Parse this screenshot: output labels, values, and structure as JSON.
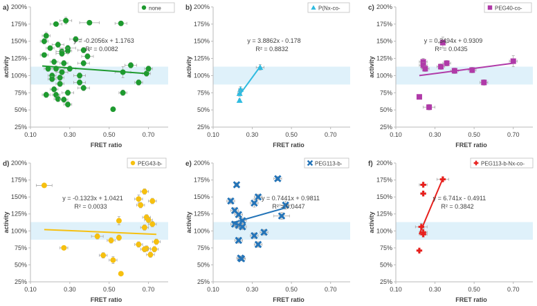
{
  "colors": {
    "band": "#dff1fa",
    "axis": "#b8b8b8",
    "text": "#404040",
    "error_bar": "#a6a6a6"
  },
  "chart_data": [
    {
      "type": "scatter",
      "panel_label": "a)",
      "legend": "none",
      "marker": "circle",
      "color": "#1e9a2f",
      "xlabel": "FRET ratio",
      "ylabel": "activity",
      "xlim": [
        0.1,
        0.8
      ],
      "ylim": [
        25,
        200
      ],
      "x_ticks": [
        0.1,
        0.3,
        0.5,
        0.7
      ],
      "x_tick_labels": [
        "0.10",
        "0.30",
        "0.50",
        "0.70"
      ],
      "y_ticks": [
        25,
        50,
        75,
        100,
        125,
        150,
        175,
        200
      ],
      "y_tick_labels": [
        "25%",
        "50%",
        "75%",
        "100%",
        "125%",
        "150%",
        "175%",
        "200%"
      ],
      "band": [
        87,
        113
      ],
      "equation": "y = -0.2056x + 1.1763",
      "r2": "R² = 0.0082",
      "trend": {
        "x": [
          0.16,
          0.69
        ],
        "y": [
          114,
          103
        ]
      },
      "points": [
        {
          "x": 0.28,
          "y": 180,
          "xerr": 0.03,
          "yerr": 5
        },
        {
          "x": 0.4,
          "y": 177,
          "xerr": 0.05,
          "yerr": 3
        },
        {
          "x": 0.23,
          "y": 175,
          "xerr": 0.03,
          "yerr": 3
        },
        {
          "x": 0.56,
          "y": 176,
          "xerr": 0.03,
          "yerr": 3
        },
        {
          "x": 0.18,
          "y": 158,
          "xerr": 0.02,
          "yerr": 5
        },
        {
          "x": 0.17,
          "y": 150,
          "xerr": 0.02,
          "yerr": 4
        },
        {
          "x": 0.24,
          "y": 145,
          "xerr": 0.03,
          "yerr": 4
        },
        {
          "x": 0.33,
          "y": 153,
          "xerr": 0.03,
          "yerr": 4
        },
        {
          "x": 0.29,
          "y": 140,
          "xerr": 0.04,
          "yerr": 4
        },
        {
          "x": 0.37,
          "y": 137,
          "xerr": 0.03,
          "yerr": 4
        },
        {
          "x": 0.2,
          "y": 140,
          "xerr": 0.02,
          "yerr": 3
        },
        {
          "x": 0.26,
          "y": 135,
          "xerr": 0.03,
          "yerr": 4
        },
        {
          "x": 0.29,
          "y": 136,
          "xerr": 0.02,
          "yerr": 4
        },
        {
          "x": 0.17,
          "y": 130,
          "xerr": 0.02,
          "yerr": 3
        },
        {
          "x": 0.26,
          "y": 132,
          "xerr": 0.03,
          "yerr": 4
        },
        {
          "x": 0.39,
          "y": 128,
          "xerr": 0.03,
          "yerr": 4
        },
        {
          "x": 0.22,
          "y": 120,
          "xerr": 0.02,
          "yerr": 4
        },
        {
          "x": 0.27,
          "y": 118,
          "xerr": 0.02,
          "yerr": 4
        },
        {
          "x": 0.37,
          "y": 118,
          "xerr": 0.03,
          "yerr": 4
        },
        {
          "x": 0.19,
          "y": 110,
          "xerr": 0.02,
          "yerr": 4
        },
        {
          "x": 0.23,
          "y": 110,
          "xerr": 0.02,
          "yerr": 4
        },
        {
          "x": 0.26,
          "y": 105,
          "xerr": 0.03,
          "yerr": 4
        },
        {
          "x": 0.3,
          "y": 110,
          "xerr": 0.03,
          "yerr": 4
        },
        {
          "x": 0.21,
          "y": 100,
          "xerr": 0.02,
          "yerr": 4
        },
        {
          "x": 0.25,
          "y": 97,
          "xerr": 0.02,
          "yerr": 4
        },
        {
          "x": 0.21,
          "y": 95,
          "xerr": 0.02,
          "yerr": 4
        },
        {
          "x": 0.35,
          "y": 100,
          "xerr": 0.03,
          "yerr": 4
        },
        {
          "x": 0.35,
          "y": 90,
          "xerr": 0.03,
          "yerr": 4
        },
        {
          "x": 0.25,
          "y": 88,
          "xerr": 0.02,
          "yerr": 4
        },
        {
          "x": 0.22,
          "y": 80,
          "xerr": 0.02,
          "yerr": 4
        },
        {
          "x": 0.37,
          "y": 82,
          "xerr": 0.03,
          "yerr": 4
        },
        {
          "x": 0.29,
          "y": 75,
          "xerr": 0.03,
          "yerr": 4
        },
        {
          "x": 0.23,
          "y": 72,
          "xerr": 0.02,
          "yerr": 4
        },
        {
          "x": 0.18,
          "y": 72,
          "xerr": 0.02,
          "yerr": 4
        },
        {
          "x": 0.24,
          "y": 66,
          "xerr": 0.02,
          "yerr": 4
        },
        {
          "x": 0.27,
          "y": 65,
          "xerr": 0.02,
          "yerr": 4
        },
        {
          "x": 0.29,
          "y": 58,
          "xerr": 0.02,
          "yerr": 4
        },
        {
          "x": 0.52,
          "y": 51,
          "xerr": 0.0,
          "yerr": 0
        },
        {
          "x": 0.57,
          "y": 105,
          "xerr": 0.04,
          "yerr": 8
        },
        {
          "x": 0.61,
          "y": 115,
          "xerr": 0.03,
          "yerr": 4
        },
        {
          "x": 0.57,
          "y": 75,
          "xerr": 0.02,
          "yerr": 4
        },
        {
          "x": 0.65,
          "y": 90,
          "xerr": 0.02,
          "yerr": 4
        },
        {
          "x": 0.69,
          "y": 103,
          "xerr": 0.02,
          "yerr": 4
        },
        {
          "x": 0.7,
          "y": 110,
          "xerr": 0.02,
          "yerr": 4
        }
      ]
    },
    {
      "type": "scatter",
      "panel_label": "b)",
      "legend": "P(Nx-co-",
      "marker": "triangle",
      "color": "#2fbbe0",
      "xlabel": "FRET ratio",
      "ylabel": "activity",
      "xlim": [
        0.1,
        0.8
      ],
      "ylim": [
        25,
        200
      ],
      "x_ticks": [
        0.1,
        0.3,
        0.5,
        0.7
      ],
      "x_tick_labels": [
        "0.10",
        "0.30",
        "0.50",
        "0.70"
      ],
      "y_ticks": [
        25,
        50,
        75,
        100,
        125,
        150,
        175,
        200
      ],
      "y_tick_labels": [
        "25%",
        "50%",
        "75%",
        "100%",
        "125%",
        "150%",
        "175%",
        "200%"
      ],
      "band": [
        87,
        113
      ],
      "equation": "y = 3.8862x - 0.178",
      "r2": "R² = 0.8832",
      "trend": {
        "x": [
          0.235,
          0.34
        ],
        "y": [
          72,
          113
        ]
      },
      "points": [
        {
          "x": 0.34,
          "y": 112,
          "xerr": 0.02,
          "yerr": 4
        },
        {
          "x": 0.24,
          "y": 80,
          "xerr": 0.01,
          "yerr": 4
        },
        {
          "x": 0.235,
          "y": 74,
          "xerr": 0.01,
          "yerr": 4
        },
        {
          "x": 0.235,
          "y": 64,
          "xerr": 0.0,
          "yerr": 2
        }
      ]
    },
    {
      "type": "scatter",
      "panel_label": "c)",
      "legend": "PEG40-co-",
      "marker": "square",
      "color": "#b03aa8",
      "xlabel": "FRET ratio",
      "ylabel": "activity",
      "xlim": [
        0.1,
        0.8
      ],
      "ylim": [
        25,
        200
      ],
      "x_ticks": [
        0.1,
        0.3,
        0.5,
        0.7
      ],
      "x_tick_labels": [
        "0.10",
        "0.30",
        "0.50",
        "0.70"
      ],
      "y_ticks": [
        25,
        50,
        75,
        100,
        125,
        150,
        175,
        200
      ],
      "y_tick_labels": [
        "25%",
        "50%",
        "75%",
        "100%",
        "125%",
        "150%",
        "175%",
        "200%"
      ],
      "band": [
        87,
        113
      ],
      "equation": "y = 0.3494x + 0.9309",
      "r2": "R² = 0.0435",
      "trend": {
        "x": [
          0.22,
          0.7
        ],
        "y": [
          100,
          118
        ]
      },
      "points": [
        {
          "x": 0.34,
          "y": 148,
          "xerr": 0.02,
          "yerr": 8
        },
        {
          "x": 0.24,
          "y": 120,
          "xerr": 0.02,
          "yerr": 5
        },
        {
          "x": 0.24,
          "y": 115,
          "xerr": 0.02,
          "yerr": 4
        },
        {
          "x": 0.25,
          "y": 110,
          "xerr": 0.02,
          "yerr": 4
        },
        {
          "x": 0.33,
          "y": 113,
          "xerr": 0.02,
          "yerr": 4
        },
        {
          "x": 0.36,
          "y": 118,
          "xerr": 0.02,
          "yerr": 4
        },
        {
          "x": 0.4,
          "y": 107,
          "xerr": 0.02,
          "yerr": 4
        },
        {
          "x": 0.49,
          "y": 108,
          "xerr": 0.02,
          "yerr": 4
        },
        {
          "x": 0.7,
          "y": 121,
          "xerr": 0.02,
          "yerr": 8
        },
        {
          "x": 0.55,
          "y": 90,
          "xerr": 0.02,
          "yerr": 4
        },
        {
          "x": 0.22,
          "y": 69,
          "xerr": 0.0,
          "yerr": 2
        },
        {
          "x": 0.27,
          "y": 54,
          "xerr": 0.03,
          "yerr": 4
        }
      ]
    },
    {
      "type": "scatter",
      "panel_label": "d)",
      "legend": "PEG43-b-",
      "marker": "circle",
      "color": "#f6c010",
      "xlabel": "FRET ratio",
      "ylabel": "activity",
      "xlim": [
        0.1,
        0.8
      ],
      "ylim": [
        25,
        200
      ],
      "x_ticks": [
        0.1,
        0.3,
        0.5,
        0.7
      ],
      "x_tick_labels": [
        "0.10",
        "0.30",
        "0.50",
        "0.70"
      ],
      "y_ticks": [
        25,
        50,
        75,
        100,
        125,
        150,
        175,
        200
      ],
      "y_tick_labels": [
        "25%",
        "50%",
        "75%",
        "100%",
        "125%",
        "150%",
        "175%",
        "200%"
      ],
      "band": [
        87,
        113
      ],
      "equation": "y = -0.1323x + 1.0421",
      "r2": "R² = 0.0033",
      "trend": {
        "x": [
          0.17,
          0.74
        ],
        "y": [
          102,
          95
        ]
      },
      "points": [
        {
          "x": 0.17,
          "y": 167,
          "xerr": 0.04,
          "yerr": 2
        },
        {
          "x": 0.27,
          "y": 75,
          "xerr": 0.02,
          "yerr": 3
        },
        {
          "x": 0.44,
          "y": 92,
          "xerr": 0.03,
          "yerr": 4
        },
        {
          "x": 0.47,
          "y": 64,
          "xerr": 0.02,
          "yerr": 4
        },
        {
          "x": 0.51,
          "y": 86,
          "xerr": 0.02,
          "yerr": 4
        },
        {
          "x": 0.52,
          "y": 57,
          "xerr": 0.02,
          "yerr": 5
        },
        {
          "x": 0.55,
          "y": 115,
          "xerr": 0.01,
          "yerr": 6
        },
        {
          "x": 0.55,
          "y": 90,
          "xerr": 0.01,
          "yerr": 4
        },
        {
          "x": 0.56,
          "y": 37,
          "xerr": 0.01,
          "yerr": 2
        },
        {
          "x": 0.65,
          "y": 147,
          "xerr": 0.02,
          "yerr": 6
        },
        {
          "x": 0.68,
          "y": 158,
          "xerr": 0.02,
          "yerr": 4
        },
        {
          "x": 0.66,
          "y": 138,
          "xerr": 0.02,
          "yerr": 4
        },
        {
          "x": 0.72,
          "y": 144,
          "xerr": 0.02,
          "yerr": 4
        },
        {
          "x": 0.69,
          "y": 120,
          "xerr": 0.02,
          "yerr": 4
        },
        {
          "x": 0.7,
          "y": 116,
          "xerr": 0.02,
          "yerr": 4
        },
        {
          "x": 0.72,
          "y": 110,
          "xerr": 0.02,
          "yerr": 4
        },
        {
          "x": 0.68,
          "y": 105,
          "xerr": 0.02,
          "yerr": 4
        },
        {
          "x": 0.65,
          "y": 80,
          "xerr": 0.02,
          "yerr": 4
        },
        {
          "x": 0.69,
          "y": 74,
          "xerr": 0.02,
          "yerr": 4
        },
        {
          "x": 0.68,
          "y": 73,
          "xerr": 0.02,
          "yerr": 4
        },
        {
          "x": 0.71,
          "y": 65,
          "xerr": 0.02,
          "yerr": 4
        },
        {
          "x": 0.73,
          "y": 73,
          "xerr": 0.02,
          "yerr": 4
        },
        {
          "x": 0.74,
          "y": 84,
          "xerr": 0.02,
          "yerr": 4
        }
      ]
    },
    {
      "type": "scatter",
      "panel_label": "e)",
      "legend": "PEG113-b-",
      "marker": "cross",
      "color": "#2474b8",
      "xlabel": "FRET ratio",
      "ylabel": "activity",
      "xlim": [
        0.1,
        0.8
      ],
      "ylim": [
        25,
        200
      ],
      "x_ticks": [
        0.1,
        0.3,
        0.5,
        0.7
      ],
      "x_tick_labels": [
        "0.10",
        "0.30",
        "0.50",
        "0.70"
      ],
      "y_ticks": [
        25,
        50,
        75,
        100,
        125,
        150,
        175,
        200
      ],
      "y_tick_labels": [
        "25%",
        "50%",
        "75%",
        "100%",
        "125%",
        "150%",
        "175%",
        "200%"
      ],
      "band": [
        87,
        113
      ],
      "equation": "y = 0.7441x + 0.9811",
      "r2": "R² = 0.0447",
      "trend": {
        "x": [
          0.2,
          0.47
        ],
        "y": [
          112,
          134
        ]
      },
      "points": [
        {
          "x": 0.43,
          "y": 177,
          "xerr": 0.02,
          "yerr": 3
        },
        {
          "x": 0.22,
          "y": 168,
          "xerr": 0.01,
          "yerr": 3
        },
        {
          "x": 0.33,
          "y": 150,
          "xerr": 0.02,
          "yerr": 4
        },
        {
          "x": 0.19,
          "y": 144,
          "xerr": 0.02,
          "yerr": 4
        },
        {
          "x": 0.31,
          "y": 141,
          "xerr": 0.02,
          "yerr": 6
        },
        {
          "x": 0.47,
          "y": 138,
          "xerr": 0.03,
          "yerr": 6
        },
        {
          "x": 0.21,
          "y": 130,
          "xerr": 0.02,
          "yerr": 4
        },
        {
          "x": 0.23,
          "y": 124,
          "xerr": 0.02,
          "yerr": 4
        },
        {
          "x": 0.45,
          "y": 122,
          "xerr": 0.04,
          "yerr": 5
        },
        {
          "x": 0.25,
          "y": 115,
          "xerr": 0.02,
          "yerr": 4
        },
        {
          "x": 0.21,
          "y": 110,
          "xerr": 0.02,
          "yerr": 4
        },
        {
          "x": 0.23,
          "y": 108,
          "xerr": 0.02,
          "yerr": 4
        },
        {
          "x": 0.25,
          "y": 106,
          "xerr": 0.02,
          "yerr": 4
        },
        {
          "x": 0.36,
          "y": 98,
          "xerr": 0.02,
          "yerr": 4
        },
        {
          "x": 0.31,
          "y": 93,
          "xerr": 0.02,
          "yerr": 4
        },
        {
          "x": 0.23,
          "y": 86,
          "xerr": 0.02,
          "yerr": 4
        },
        {
          "x": 0.33,
          "y": 80,
          "xerr": 0.02,
          "yerr": 4
        },
        {
          "x": 0.24,
          "y": 60,
          "xerr": 0.02,
          "yerr": 3
        },
        {
          "x": 0.245,
          "y": 59,
          "xerr": 0.02,
          "yerr": 3
        }
      ]
    },
    {
      "type": "scatter",
      "panel_label": "f)",
      "legend": "PEG113-b-Nx-co-",
      "marker": "plus",
      "color": "#e8201d",
      "xlabel": "FRET ratio",
      "ylabel": "activity",
      "xlim": [
        0.1,
        0.8
      ],
      "ylim": [
        25,
        200
      ],
      "x_ticks": [
        0.1,
        0.3,
        0.5,
        0.7
      ],
      "x_tick_labels": [
        "0.10",
        "0.30",
        "0.50",
        "0.70"
      ],
      "y_ticks": [
        25,
        50,
        75,
        100,
        125,
        150,
        175,
        200
      ],
      "y_tick_labels": [
        "25%",
        "50%",
        "75%",
        "100%",
        "125%",
        "150%",
        "175%",
        "200%"
      ],
      "band": [
        87,
        113
      ],
      "equation": "y = 6.741x - 0.4911",
      "r2": "R² = 0.3842",
      "trend": {
        "x": [
          0.22,
          0.34
        ],
        "y": [
          95,
          177
        ]
      },
      "points": [
        {
          "x": 0.34,
          "y": 176,
          "xerr": 0.03,
          "yerr": 3
        },
        {
          "x": 0.24,
          "y": 168,
          "xerr": 0.02,
          "yerr": 3
        },
        {
          "x": 0.24,
          "y": 155,
          "xerr": 0.01,
          "yerr": 3
        },
        {
          "x": 0.23,
          "y": 106,
          "xerr": 0.03,
          "yerr": 5
        },
        {
          "x": 0.24,
          "y": 98,
          "xerr": 0.02,
          "yerr": 6
        },
        {
          "x": 0.24,
          "y": 95,
          "xerr": 0.02,
          "yerr": 4
        },
        {
          "x": 0.22,
          "y": 71,
          "xerr": 0.0,
          "yerr": 2
        }
      ]
    }
  ]
}
